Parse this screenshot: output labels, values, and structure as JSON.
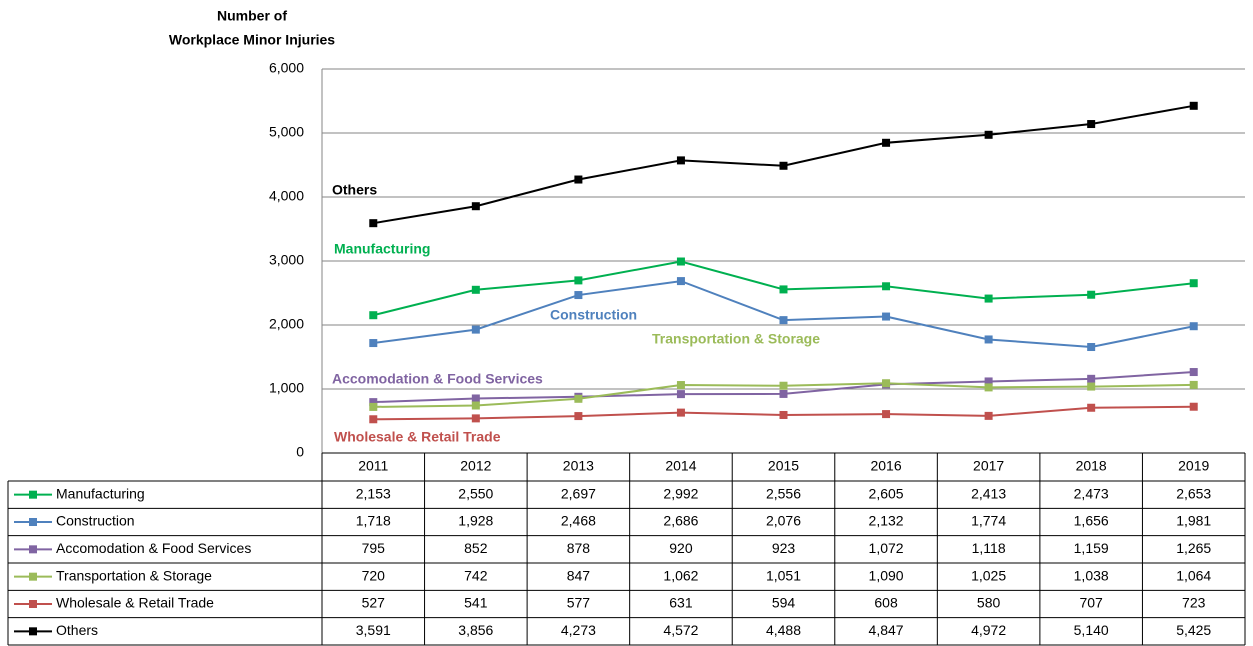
{
  "chart_data": {
    "type": "line",
    "y_label_lines": [
      "Number of",
      "Workplace Minor Injuries"
    ],
    "categories": [
      "2011",
      "2012",
      "2013",
      "2014",
      "2015",
      "2016",
      "2017",
      "2018",
      "2019"
    ],
    "series": [
      {
        "name": "Manufacturing",
        "color": "#00b050",
        "values": [
          2153,
          2550,
          2697,
          2992,
          2556,
          2605,
          2413,
          2473,
          2653
        ],
        "value_labels": [
          "2,153",
          "2,550",
          "2,697",
          "2,992",
          "2,556",
          "2,605",
          "2,413",
          "2,473",
          "2,653"
        ]
      },
      {
        "name": "Construction",
        "color": "#4f81bd",
        "values": [
          1718,
          1928,
          2468,
          2686,
          2076,
          2132,
          1774,
          1656,
          1981
        ],
        "value_labels": [
          "1,718",
          "1,928",
          "2,468",
          "2,686",
          "2,076",
          "2,132",
          "1,774",
          "1,656",
          "1,981"
        ]
      },
      {
        "name": "Accomodation & Food Services",
        "color": "#8064a2",
        "values": [
          795,
          852,
          878,
          920,
          923,
          1072,
          1118,
          1159,
          1265
        ],
        "value_labels": [
          "795",
          "852",
          "878",
          "920",
          "923",
          "1,072",
          "1,118",
          "1,159",
          "1,265"
        ]
      },
      {
        "name": "Transportation & Storage",
        "color": "#9bbb59",
        "values": [
          720,
          742,
          847,
          1062,
          1051,
          1090,
          1025,
          1038,
          1064
        ],
        "value_labels": [
          "720",
          "742",
          "847",
          "1,062",
          "1,051",
          "1,090",
          "1,025",
          "1,038",
          "1,064"
        ]
      },
      {
        "name": "Wholesale & Retail Trade",
        "color": "#c0504d",
        "values": [
          527,
          541,
          577,
          631,
          594,
          608,
          580,
          707,
          723
        ],
        "value_labels": [
          "527",
          "541",
          "577",
          "631",
          "594",
          "608",
          "580",
          "707",
          "723"
        ]
      },
      {
        "name": "Others",
        "color": "#000000",
        "values": [
          3591,
          3856,
          4273,
          4572,
          4488,
          4847,
          4972,
          5140,
          5425
        ],
        "value_labels": [
          "3,591",
          "3,856",
          "4,273",
          "4,572",
          "4,488",
          "4,847",
          "4,972",
          "5,140",
          "5,425"
        ]
      }
    ],
    "ylim": [
      0,
      6000
    ],
    "yticks": [
      0,
      {
        "value": 1000,
        "label": "1,000"
      },
      {
        "value": 2000,
        "label": "2,000"
      },
      {
        "value": 3000,
        "label": "3,000"
      },
      {
        "value": 4000,
        "label": "4,000"
      },
      {
        "value": 5000,
        "label": "5,000"
      },
      {
        "value": 6000,
        "label": "6,000"
      }
    ],
    "grid": true
  }
}
